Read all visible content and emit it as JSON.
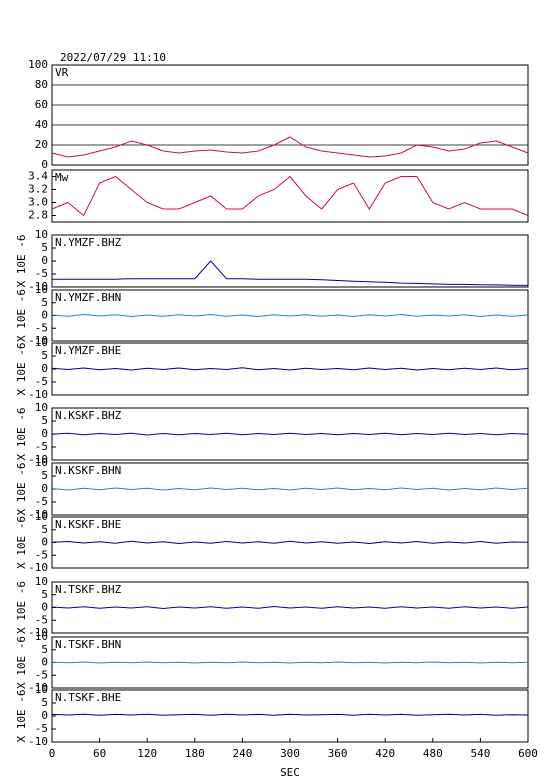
{
  "title": "2022/07/29  11:10",
  "chart_data": [
    {
      "type": "line",
      "label": "VR",
      "color": "#d0103a",
      "grid": true,
      "xlim": [
        0,
        600
      ],
      "ylim": [
        0,
        100
      ],
      "yticks": [
        0,
        20,
        40,
        60,
        80,
        100
      ],
      "x": [
        0,
        20,
        40,
        60,
        80,
        100,
        120,
        140,
        160,
        180,
        200,
        220,
        240,
        260,
        280,
        300,
        320,
        340,
        360,
        380,
        400,
        420,
        440,
        460,
        480,
        500,
        520,
        540,
        560,
        580,
        600
      ],
      "values": [
        12,
        8,
        10,
        14,
        18,
        24,
        20,
        14,
        12,
        14,
        15,
        13,
        12,
        14,
        20,
        28,
        18,
        14,
        12,
        10,
        8,
        9,
        12,
        20,
        18,
        14,
        16,
        22,
        24,
        18,
        12
      ]
    },
    {
      "type": "line",
      "label": "Mw",
      "color": "#d0103a",
      "grid": false,
      "xlim": [
        0,
        600
      ],
      "ylim": [
        2.7,
        3.5
      ],
      "yticks": [
        {
          "value": 2.8,
          "label": "2.8"
        },
        {
          "value": 3.0,
          "label": "3.0"
        },
        {
          "value": 3.2,
          "label": "3.2"
        },
        {
          "value": 3.4,
          "label": "3.4"
        }
      ],
      "x": [
        0,
        20,
        40,
        60,
        80,
        100,
        120,
        140,
        160,
        180,
        200,
        220,
        240,
        260,
        280,
        300,
        320,
        340,
        360,
        380,
        400,
        420,
        440,
        460,
        480,
        500,
        520,
        540,
        560,
        580,
        600
      ],
      "values": [
        2.9,
        3.0,
        2.8,
        3.3,
        3.4,
        3.2,
        3.0,
        2.9,
        2.9,
        3.0,
        3.1,
        2.9,
        2.9,
        3.1,
        3.2,
        3.4,
        3.1,
        2.9,
        3.2,
        3.3,
        2.9,
        3.3,
        3.4,
        3.4,
        3.0,
        2.9,
        3.0,
        2.9,
        2.9,
        2.9,
        2.8
      ]
    },
    {
      "type": "line",
      "label": "N.YMZF.BHZ",
      "ylabel": "X 10E -6",
      "color": "#0000b0",
      "grid": false,
      "xlim": [
        0,
        600
      ],
      "ylim": [
        -10,
        10
      ],
      "yticks": [
        -10,
        -5,
        0,
        5,
        10
      ],
      "x": [
        0,
        20,
        40,
        60,
        80,
        100,
        120,
        140,
        160,
        180,
        200,
        220,
        240,
        260,
        280,
        300,
        320,
        340,
        360,
        380,
        400,
        420,
        440,
        460,
        480,
        500,
        520,
        540,
        560,
        580,
        600
      ],
      "values": [
        -7,
        -7,
        -7,
        -7,
        -7,
        -6.8,
        -6.8,
        -6.8,
        -6.8,
        -6.8,
        0,
        -6.8,
        -6.8,
        -7,
        -7,
        -7,
        -7,
        -7.2,
        -7.5,
        -7.8,
        -8,
        -8.2,
        -8.5,
        -8.6,
        -8.8,
        -9,
        -9,
        -9.1,
        -9.2,
        -9.3,
        -9.4
      ]
    },
    {
      "type": "line",
      "label": "N.YMZF.BHN",
      "ylabel": "X 10E -6",
      "color": "#2080e0",
      "grid": false,
      "xlim": [
        0,
        600
      ],
      "ylim": [
        -10,
        10
      ],
      "yticks": [
        -10,
        -5,
        0,
        5,
        10
      ],
      "x": [
        0,
        20,
        40,
        60,
        80,
        100,
        120,
        140,
        160,
        180,
        200,
        220,
        240,
        260,
        280,
        300,
        320,
        340,
        360,
        380,
        400,
        420,
        440,
        460,
        480,
        500,
        520,
        540,
        560,
        580,
        600
      ],
      "values": [
        0.2,
        -0.3,
        0.4,
        -0.2,
        0.3,
        -0.4,
        0.2,
        -0.3,
        0.3,
        -0.2,
        0.4,
        -0.3,
        0.2,
        -0.4,
        0.3,
        -0.2,
        0.3,
        -0.3,
        0.2,
        -0.4,
        0.3,
        -0.2,
        0.4,
        -0.3,
        0.2,
        -0.2,
        0.3,
        -0.4,
        0.2,
        -0.3,
        0.2
      ]
    },
    {
      "type": "line",
      "label": "N.YMZF.BHE",
      "ylabel": "X 10E -6",
      "color": "#000080",
      "grid": false,
      "xlim": [
        0,
        600
      ],
      "ylim": [
        -10,
        10
      ],
      "yticks": [
        -10,
        -5,
        0,
        5,
        10
      ],
      "x": [
        0,
        20,
        40,
        60,
        80,
        100,
        120,
        140,
        160,
        180,
        200,
        220,
        240,
        260,
        280,
        300,
        320,
        340,
        360,
        380,
        400,
        420,
        440,
        460,
        480,
        500,
        520,
        540,
        560,
        580,
        600
      ],
      "values": [
        0.3,
        -0.2,
        0.4,
        -0.3,
        0.2,
        -0.4,
        0.3,
        -0.2,
        0.4,
        -0.3,
        0.2,
        -0.2,
        0.5,
        -0.3,
        0.2,
        -0.4,
        0.3,
        -0.2,
        0.2,
        -0.3,
        0.4,
        -0.2,
        0.3,
        -0.4,
        0.2,
        -0.3,
        0.3,
        -0.2,
        0.4,
        -0.3,
        0.2
      ]
    },
    {
      "type": "line",
      "label": "N.KSKF.BHZ",
      "ylabel": "X 10E -6",
      "color": "#0000b0",
      "grid": false,
      "xlim": [
        0,
        600
      ],
      "ylim": [
        -10,
        10
      ],
      "yticks": [
        -10,
        -5,
        0,
        5,
        10
      ],
      "x": [
        0,
        20,
        40,
        60,
        80,
        100,
        120,
        140,
        160,
        180,
        200,
        220,
        240,
        260,
        280,
        300,
        320,
        340,
        360,
        380,
        400,
        420,
        440,
        460,
        480,
        500,
        520,
        540,
        560,
        580,
        600
      ],
      "values": [
        -0.1,
        0.3,
        -0.3,
        0.2,
        -0.2,
        0.3,
        -0.4,
        0.2,
        -0.3,
        0.2,
        -0.2,
        0.3,
        -0.3,
        0.2,
        -0.2,
        0.3,
        -0.2,
        0.2,
        -0.3,
        0.2,
        -0.2,
        0.3,
        -0.3,
        0.2,
        -0.2,
        0.3,
        -0.2,
        0.2,
        -0.3,
        0.2,
        -0.1
      ]
    },
    {
      "type": "line",
      "label": "N.KSKF.BHN",
      "ylabel": "X 10E -6",
      "color": "#2080e0",
      "grid": false,
      "xlim": [
        0,
        600
      ],
      "ylim": [
        -10,
        10
      ],
      "yticks": [
        -10,
        -5,
        0,
        5,
        10
      ],
      "x": [
        0,
        20,
        40,
        60,
        80,
        100,
        120,
        140,
        160,
        180,
        200,
        220,
        240,
        260,
        280,
        300,
        320,
        340,
        360,
        380,
        400,
        420,
        440,
        460,
        480,
        500,
        520,
        540,
        560,
        580,
        600
      ],
      "values": [
        0.2,
        -0.4,
        0.3,
        -0.3,
        0.4,
        -0.2,
        0.3,
        -0.4,
        0.2,
        -0.3,
        0.4,
        -0.2,
        0.3,
        -0.3,
        0.2,
        -0.4,
        0.3,
        -0.2,
        0.4,
        -0.3,
        0.2,
        -0.3,
        0.4,
        -0.2,
        0.3,
        -0.4,
        0.2,
        -0.3,
        0.4,
        -0.2,
        0.3
      ]
    },
    {
      "type": "line",
      "label": "N.KSKF.BHE",
      "ylabel": "X 10E -6",
      "color": "#000080",
      "grid": false,
      "xlim": [
        0,
        600
      ],
      "ylim": [
        -10,
        10
      ],
      "yticks": [
        -10,
        -5,
        0,
        5,
        10
      ],
      "x": [
        0,
        20,
        40,
        60,
        80,
        100,
        120,
        140,
        160,
        180,
        200,
        220,
        240,
        260,
        280,
        300,
        320,
        340,
        360,
        380,
        400,
        420,
        440,
        460,
        480,
        500,
        520,
        540,
        560,
        580,
        600
      ],
      "values": [
        0.1,
        0.4,
        -0.2,
        0.3,
        -0.3,
        0.5,
        -0.2,
        0.3,
        -0.4,
        0.2,
        -0.3,
        0.4,
        -0.2,
        0.3,
        -0.3,
        0.5,
        -0.2,
        0.3,
        -0.3,
        0.2,
        -0.4,
        0.3,
        -0.2,
        0.4,
        -0.3,
        0.2,
        -0.2,
        0.4,
        -0.3,
        0.2,
        0.1
      ]
    },
    {
      "type": "line",
      "label": "N.TSKF.BHZ",
      "ylabel": "X 10E -6",
      "color": "#0000b0",
      "grid": false,
      "xlim": [
        0,
        600
      ],
      "ylim": [
        -10,
        10
      ],
      "yticks": [
        -10,
        -5,
        0,
        5,
        10
      ],
      "x": [
        0,
        20,
        40,
        60,
        80,
        100,
        120,
        140,
        160,
        180,
        200,
        220,
        240,
        260,
        280,
        300,
        320,
        340,
        360,
        380,
        400,
        420,
        440,
        460,
        480,
        500,
        520,
        540,
        560,
        580,
        600
      ],
      "values": [
        0.2,
        -0.2,
        0.3,
        -0.3,
        0.2,
        -0.2,
        0.3,
        -0.4,
        0.2,
        -0.2,
        0.3,
        -0.3,
        0.2,
        -0.3,
        0.4,
        -0.2,
        0.2,
        -0.3,
        0.3,
        -0.2,
        0.2,
        -0.3,
        0.3,
        -0.2,
        0.2,
        -0.3,
        0.3,
        -0.2,
        0.2,
        -0.3,
        0.2
      ]
    },
    {
      "type": "line",
      "label": "N.TSKF.BHN",
      "ylabel": "X 10E -6",
      "color": "#2080e0",
      "grid": false,
      "xlim": [
        0,
        600
      ],
      "ylim": [
        -10,
        10
      ],
      "yticks": [
        -10,
        -5,
        0,
        5,
        10
      ],
      "x": [
        0,
        20,
        40,
        60,
        80,
        100,
        120,
        140,
        160,
        180,
        200,
        220,
        240,
        260,
        280,
        300,
        320,
        340,
        360,
        380,
        400,
        420,
        440,
        460,
        480,
        500,
        520,
        540,
        560,
        580,
        600
      ],
      "values": [
        0.1,
        -0.1,
        0.2,
        -0.2,
        0.1,
        -0.1,
        0.2,
        -0.1,
        0.1,
        -0.2,
        0.1,
        -0.1,
        0.2,
        -0.1,
        0.1,
        -0.2,
        0.1,
        -0.1,
        0.2,
        -0.1,
        0.1,
        -0.2,
        0.1,
        -0.1,
        0.2,
        -0.1,
        0.1,
        -0.2,
        0.1,
        -0.1,
        0.1
      ]
    },
    {
      "type": "line",
      "label": "N.TSKF.BHE",
      "ylabel": "X 10E -6",
      "xlabel": "SEC",
      "color": "#000080",
      "grid": false,
      "xlim": [
        0,
        600
      ],
      "xticks": [
        0,
        60,
        120,
        180,
        240,
        300,
        360,
        420,
        480,
        540,
        600
      ],
      "ylim": [
        -10,
        10
      ],
      "yticks": [
        -10,
        -5,
        0,
        5,
        10
      ],
      "x": [
        0,
        20,
        40,
        60,
        80,
        100,
        120,
        140,
        160,
        180,
        200,
        220,
        240,
        260,
        280,
        300,
        320,
        340,
        360,
        380,
        400,
        420,
        440,
        460,
        480,
        500,
        520,
        540,
        560,
        580,
        600
      ],
      "values": [
        0.6,
        0.4,
        0.7,
        0.3,
        0.6,
        0.4,
        0.7,
        0.3,
        0.5,
        0.6,
        0.3,
        0.7,
        0.4,
        0.6,
        0.3,
        0.7,
        0.4,
        0.5,
        0.6,
        0.3,
        0.7,
        0.4,
        0.6,
        0.3,
        0.5,
        0.7,
        0.4,
        0.6,
        0.3,
        0.5,
        0.4
      ]
    }
  ]
}
